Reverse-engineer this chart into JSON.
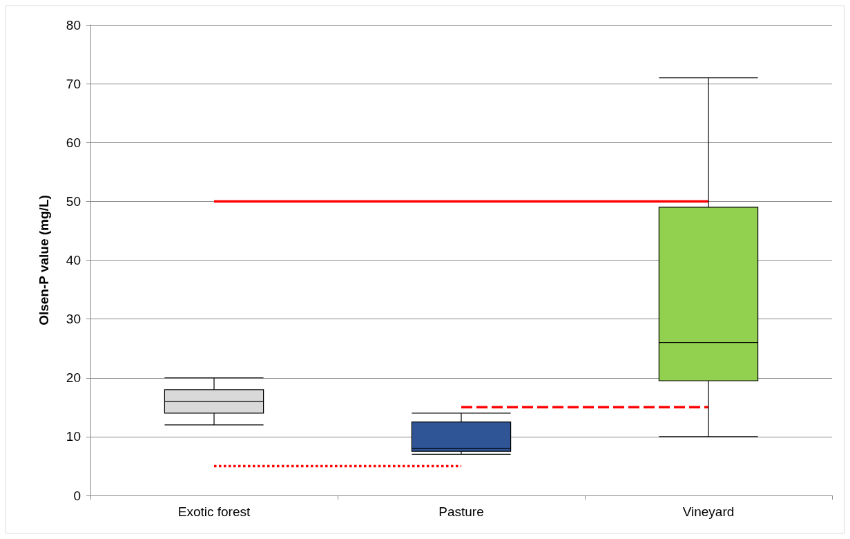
{
  "chart_data": {
    "type": "box",
    "ylabel": "Olsen-P value (mg/L)",
    "categories": [
      "Exotic forest",
      "Pasture",
      "Vineyard"
    ],
    "boxes": [
      {
        "low": 12,
        "q1": 14,
        "median": 16,
        "q3": 18,
        "high": 20
      },
      {
        "low": 7,
        "q1": 7.5,
        "median": 8,
        "q3": 12.5,
        "high": 14
      },
      {
        "low": 10,
        "q1": 19.5,
        "median": 26,
        "q3": 49,
        "high": 71
      }
    ],
    "colors": [
      "#d9d9d9",
      "#2f5597",
      "#92d050"
    ],
    "series": [
      {
        "type": "line",
        "x": [
          "Exotic forest",
          "Vineyard"
        ],
        "values": [
          50,
          50
        ],
        "color": "#ff0000",
        "line_style": "solid"
      },
      {
        "type": "line",
        "x": [
          "Pasture",
          "Vineyard"
        ],
        "values": [
          15,
          15
        ],
        "color": "#ff0000",
        "line_style": "dashed"
      },
      {
        "type": "line",
        "x": [
          "Exotic forest",
          "Pasture"
        ],
        "values": [
          5,
          5
        ],
        "color": "#ff0000",
        "line_style": "dotted"
      }
    ],
    "ylim": [
      0,
      80
    ],
    "yticks": [
      0,
      10,
      20,
      30,
      40,
      50,
      60,
      70,
      80
    ],
    "grid": "y",
    "marker": "none"
  }
}
